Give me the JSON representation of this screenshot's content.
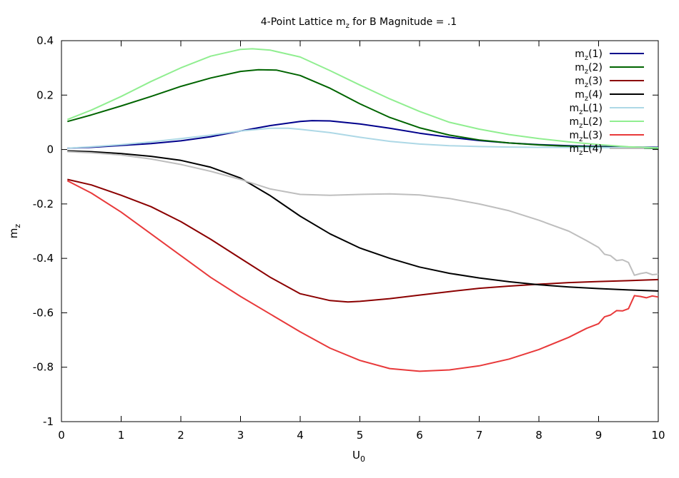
{
  "chart_data": {
    "type": "line",
    "title": {
      "base": "4-Point Lattice m",
      "sub": "z",
      "rest": " for B Magnitude = .1"
    },
    "xlabel": {
      "base": "U",
      "sub": "0"
    },
    "ylabel": {
      "base": "m",
      "sub": "z"
    },
    "xlim": [
      0,
      10
    ],
    "ylim": [
      -1,
      0.4
    ],
    "xticks": [
      "0",
      "1",
      "2",
      "3",
      "4",
      "5",
      "6",
      "7",
      "8",
      "9",
      "10"
    ],
    "yticks": [
      "0.4",
      "0.2",
      "0",
      "-0.2",
      "-0.4",
      "-0.6",
      "-0.8",
      "-1"
    ],
    "grid": false,
    "legend_position": "top-right",
    "series": [
      {
        "name": {
          "base": "m",
          "sub": "z",
          "rest": "(1)"
        },
        "color": "#00008b",
        "points": [
          [
            0.1,
            0.005
          ],
          [
            0.5,
            0.008
          ],
          [
            1,
            0.015
          ],
          [
            1.5,
            0.022
          ],
          [
            2,
            0.032
          ],
          [
            2.5,
            0.047
          ],
          [
            3,
            0.068
          ],
          [
            3.5,
            0.088
          ],
          [
            4,
            0.103
          ],
          [
            4.2,
            0.106
          ],
          [
            4.5,
            0.105
          ],
          [
            5,
            0.094
          ],
          [
            5.5,
            0.078
          ],
          [
            6,
            0.06
          ],
          [
            6.5,
            0.045
          ],
          [
            7,
            0.033
          ],
          [
            7.5,
            0.024
          ],
          [
            8,
            0.018
          ],
          [
            8.5,
            0.014
          ],
          [
            9,
            0.011
          ],
          [
            9.5,
            0.009
          ],
          [
            10,
            0.008
          ]
        ]
      },
      {
        "name": {
          "base": "m",
          "sub": "z",
          "rest": "(2)"
        },
        "color": "#006400",
        "points": [
          [
            0.1,
            0.103
          ],
          [
            0.5,
            0.127
          ],
          [
            1,
            0.16
          ],
          [
            1.5,
            0.195
          ],
          [
            2,
            0.232
          ],
          [
            2.5,
            0.263
          ],
          [
            3,
            0.287
          ],
          [
            3.3,
            0.293
          ],
          [
            3.6,
            0.292
          ],
          [
            4,
            0.272
          ],
          [
            4.5,
            0.225
          ],
          [
            5,
            0.168
          ],
          [
            5.5,
            0.118
          ],
          [
            6,
            0.08
          ],
          [
            6.5,
            0.053
          ],
          [
            7,
            0.035
          ],
          [
            7.5,
            0.024
          ],
          [
            8,
            0.017
          ],
          [
            8.5,
            0.012
          ],
          [
            9,
            0.009
          ],
          [
            9.5,
            0.006
          ],
          [
            10,
            0.004
          ]
        ]
      },
      {
        "name": {
          "base": "m",
          "sub": "z",
          "rest": "(3)"
        },
        "color": "#8b0000",
        "points": [
          [
            0.1,
            -0.11
          ],
          [
            0.5,
            -0.13
          ],
          [
            1,
            -0.168
          ],
          [
            1.5,
            -0.21
          ],
          [
            2,
            -0.265
          ],
          [
            2.5,
            -0.33
          ],
          [
            3,
            -0.4
          ],
          [
            3.5,
            -0.47
          ],
          [
            4,
            -0.53
          ],
          [
            4.5,
            -0.555
          ],
          [
            4.8,
            -0.56
          ],
          [
            5,
            -0.558
          ],
          [
            5.5,
            -0.548
          ],
          [
            6,
            -0.535
          ],
          [
            6.5,
            -0.522
          ],
          [
            7,
            -0.51
          ],
          [
            7.5,
            -0.502
          ],
          [
            8,
            -0.495
          ],
          [
            8.5,
            -0.489
          ],
          [
            9,
            -0.485
          ],
          [
            9.5,
            -0.482
          ],
          [
            10,
            -0.478
          ]
        ]
      },
      {
        "name": {
          "base": "m",
          "sub": "z",
          "rest": "(4)"
        },
        "color": "#000000",
        "points": [
          [
            0.1,
            -0.005
          ],
          [
            0.5,
            -0.008
          ],
          [
            1,
            -0.015
          ],
          [
            1.5,
            -0.025
          ],
          [
            2,
            -0.04
          ],
          [
            2.5,
            -0.065
          ],
          [
            3,
            -0.105
          ],
          [
            3.5,
            -0.17
          ],
          [
            4,
            -0.245
          ],
          [
            4.5,
            -0.31
          ],
          [
            5,
            -0.362
          ],
          [
            5.5,
            -0.4
          ],
          [
            6,
            -0.432
          ],
          [
            6.5,
            -0.455
          ],
          [
            7,
            -0.472
          ],
          [
            7.5,
            -0.486
          ],
          [
            8,
            -0.497
          ],
          [
            8.5,
            -0.505
          ],
          [
            9,
            -0.511
          ],
          [
            9.5,
            -0.516
          ],
          [
            10,
            -0.52
          ]
        ]
      },
      {
        "name": {
          "base": "m",
          "sub": "z",
          "rest": "L(1)"
        },
        "color": "#add8e6",
        "points": [
          [
            0.1,
            0.005
          ],
          [
            0.5,
            0.01
          ],
          [
            1,
            0.018
          ],
          [
            1.5,
            0.028
          ],
          [
            2,
            0.04
          ],
          [
            2.5,
            0.053
          ],
          [
            3,
            0.068
          ],
          [
            3.5,
            0.078
          ],
          [
            3.8,
            0.078
          ],
          [
            4,
            0.074
          ],
          [
            4.5,
            0.062
          ],
          [
            5,
            0.045
          ],
          [
            5.5,
            0.03
          ],
          [
            6,
            0.02
          ],
          [
            6.5,
            0.014
          ],
          [
            7,
            0.011
          ],
          [
            7.5,
            0.009
          ],
          [
            8,
            0.008
          ],
          [
            9,
            0.007
          ],
          [
            10,
            0.006
          ]
        ]
      },
      {
        "name": {
          "base": "m",
          "sub": "z",
          "rest": "L(2)"
        },
        "color": "#90ee90",
        "points": [
          [
            0.1,
            0.11
          ],
          [
            0.5,
            0.145
          ],
          [
            1,
            0.195
          ],
          [
            1.5,
            0.25
          ],
          [
            2,
            0.3
          ],
          [
            2.5,
            0.343
          ],
          [
            3,
            0.368
          ],
          [
            3.2,
            0.37
          ],
          [
            3.5,
            0.365
          ],
          [
            4,
            0.34
          ],
          [
            4.5,
            0.29
          ],
          [
            5,
            0.237
          ],
          [
            5.5,
            0.186
          ],
          [
            6,
            0.14
          ],
          [
            6.5,
            0.1
          ],
          [
            7,
            0.075
          ],
          [
            7.5,
            0.055
          ],
          [
            8,
            0.04
          ],
          [
            8.5,
            0.028
          ],
          [
            9,
            0.018
          ],
          [
            9.5,
            0.01
          ],
          [
            10,
            0.006
          ]
        ]
      },
      {
        "name": {
          "base": "m",
          "sub": "z",
          "rest": "L(3)"
        },
        "color": "#e8393a",
        "points": [
          [
            0.1,
            -0.115
          ],
          [
            0.5,
            -0.16
          ],
          [
            1,
            -0.23
          ],
          [
            1.5,
            -0.31
          ],
          [
            2,
            -0.39
          ],
          [
            2.5,
            -0.47
          ],
          [
            3,
            -0.54
          ],
          [
            3.5,
            -0.605
          ],
          [
            4,
            -0.67
          ],
          [
            4.5,
            -0.73
          ],
          [
            5,
            -0.775
          ],
          [
            5.5,
            -0.805
          ],
          [
            6,
            -0.815
          ],
          [
            6.5,
            -0.81
          ],
          [
            7,
            -0.795
          ],
          [
            7.5,
            -0.77
          ],
          [
            8,
            -0.735
          ],
          [
            8.5,
            -0.69
          ],
          [
            8.8,
            -0.657
          ],
          [
            9,
            -0.64
          ],
          [
            9.1,
            -0.615
          ],
          [
            9.2,
            -0.608
          ],
          [
            9.3,
            -0.592
          ],
          [
            9.4,
            -0.593
          ],
          [
            9.5,
            -0.585
          ],
          [
            9.6,
            -0.537
          ],
          [
            9.7,
            -0.54
          ],
          [
            9.8,
            -0.545
          ],
          [
            9.9,
            -0.538
          ],
          [
            10,
            -0.542
          ]
        ]
      },
      {
        "name": {
          "base": "m",
          "sub": "z",
          "rest": "L(4)"
        },
        "color": "#bebebe",
        "points": [
          [
            0.1,
            -0.008
          ],
          [
            0.5,
            -0.012
          ],
          [
            1,
            -0.02
          ],
          [
            1.5,
            -0.035
          ],
          [
            2,
            -0.055
          ],
          [
            2.5,
            -0.08
          ],
          [
            3,
            -0.11
          ],
          [
            3.5,
            -0.145
          ],
          [
            4,
            -0.165
          ],
          [
            4.5,
            -0.168
          ],
          [
            5,
            -0.165
          ],
          [
            5.5,
            -0.163
          ],
          [
            6,
            -0.167
          ],
          [
            6.5,
            -0.18
          ],
          [
            7,
            -0.2
          ],
          [
            7.5,
            -0.225
          ],
          [
            8,
            -0.26
          ],
          [
            8.5,
            -0.3
          ],
          [
            8.8,
            -0.335
          ],
          [
            9,
            -0.36
          ],
          [
            9.1,
            -0.385
          ],
          [
            9.2,
            -0.39
          ],
          [
            9.3,
            -0.408
          ],
          [
            9.4,
            -0.405
          ],
          [
            9.5,
            -0.415
          ],
          [
            9.6,
            -0.462
          ],
          [
            9.7,
            -0.456
          ],
          [
            9.8,
            -0.452
          ],
          [
            9.9,
            -0.46
          ],
          [
            10,
            -0.458
          ]
        ]
      }
    ]
  }
}
